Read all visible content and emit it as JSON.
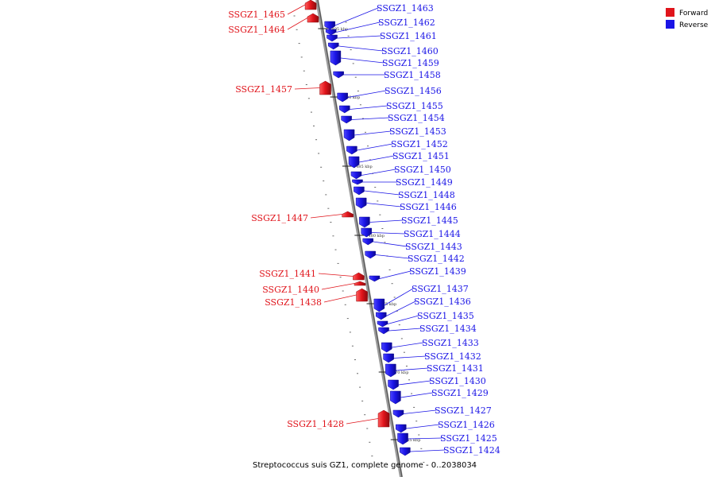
{
  "legend": {
    "forward": {
      "label": "Forward",
      "color": "#e0141b"
    },
    "reverse": {
      "label": "Reverse",
      "color": "#1a14e6"
    }
  },
  "footer": {
    "genome": "Streptococcus suis GZ1, complete genome",
    "range": "0..2038034"
  },
  "ticks": [
    "1495 kbp",
    "1490 kbp",
    "1485 kbp",
    "1480 kbp",
    "1475 kbp",
    "1470 kbp",
    "1465 kbp"
  ],
  "forward_genes": [
    {
      "label": "SSGZ1_1465"
    },
    {
      "label": "SSGZ1_1464"
    },
    {
      "label": "SSGZ1_1457"
    },
    {
      "label": "SSGZ1_1447"
    },
    {
      "label": "SSGZ1_1441"
    },
    {
      "label": "SSGZ1_1440"
    },
    {
      "label": "SSGZ1_1438"
    },
    {
      "label": "SSGZ1_1428"
    }
  ],
  "reverse_genes": [
    {
      "label": "SSGZ1_1463"
    },
    {
      "label": "SSGZ1_1462"
    },
    {
      "label": "SSGZ1_1461"
    },
    {
      "label": "SSGZ1_1460"
    },
    {
      "label": "SSGZ1_1459"
    },
    {
      "label": "SSGZ1_1458"
    },
    {
      "label": "SSGZ1_1456"
    },
    {
      "label": "SSGZ1_1455"
    },
    {
      "label": "SSGZ1_1454"
    },
    {
      "label": "SSGZ1_1453"
    },
    {
      "label": "SSGZ1_1452"
    },
    {
      "label": "SSGZ1_1451"
    },
    {
      "label": "SSGZ1_1450"
    },
    {
      "label": "SSGZ1_1449"
    },
    {
      "label": "SSGZ1_1448"
    },
    {
      "label": "SSGZ1_1446"
    },
    {
      "label": "SSGZ1_1445"
    },
    {
      "label": "SSGZ1_1444"
    },
    {
      "label": "SSGZ1_1443"
    },
    {
      "label": "SSGZ1_1442"
    },
    {
      "label": "SSGZ1_1439"
    },
    {
      "label": "SSGZ1_1437"
    },
    {
      "label": "SSGZ1_1436"
    },
    {
      "label": "SSGZ1_1435"
    },
    {
      "label": "SSGZ1_1434"
    },
    {
      "label": "SSGZ1_1433"
    },
    {
      "label": "SSGZ1_1432"
    },
    {
      "label": "SSGZ1_1431"
    },
    {
      "label": "SSGZ1_1430"
    },
    {
      "label": "SSGZ1_1429"
    },
    {
      "label": "SSGZ1_1427"
    },
    {
      "label": "SSGZ1_1426"
    },
    {
      "label": "SSGZ1_1425"
    },
    {
      "label": "SSGZ1_1424"
    }
  ]
}
